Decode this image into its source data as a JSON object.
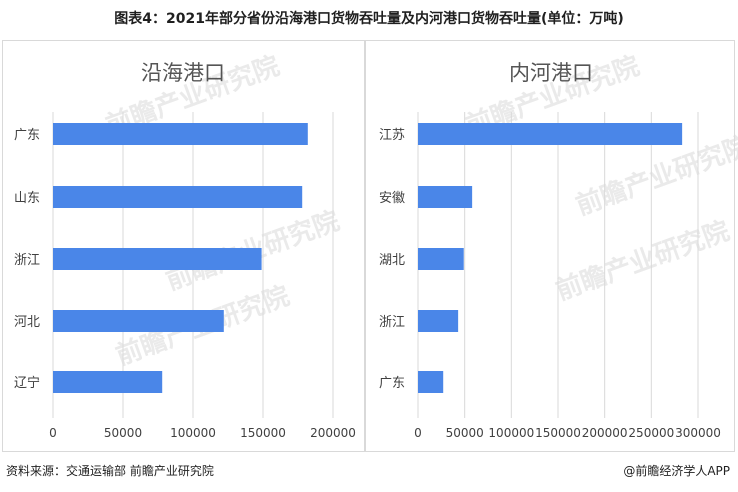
{
  "header": {
    "title": "图表4：2021年部分省份沿海港口货物吞吐量及内河港口货物吞吐量(单位：万吨)"
  },
  "footer": {
    "source": "资料来源：交通运输部 前瞻产业研究院",
    "brand": "@前瞻经济学人APP"
  },
  "watermark": {
    "text": "前瞻产业研究院"
  },
  "colors": {
    "bar": "#4a86e8",
    "grid": "#d9d9d9",
    "axis_text": "#404040"
  },
  "chart_data": [
    {
      "type": "bar",
      "orientation": "horizontal",
      "title": "沿海港口",
      "categories": [
        "广东",
        "山东",
        "浙江",
        "河北",
        "辽宁"
      ],
      "values": [
        182000,
        178000,
        149000,
        122000,
        78000
      ],
      "xlim": [
        0,
        200000
      ],
      "xticks": [
        0,
        50000,
        100000,
        150000,
        200000
      ],
      "grid": true
    },
    {
      "type": "bar",
      "orientation": "horizontal",
      "title": "内河港口",
      "categories": [
        "江苏",
        "安徽",
        "湖北",
        "浙江",
        "广东"
      ],
      "values": [
        283000,
        58000,
        49000,
        43000,
        27000
      ],
      "xlim": [
        0,
        300000
      ],
      "xticks": [
        0,
        50000,
        100000,
        150000,
        200000,
        250000,
        300000
      ],
      "grid": true
    }
  ]
}
